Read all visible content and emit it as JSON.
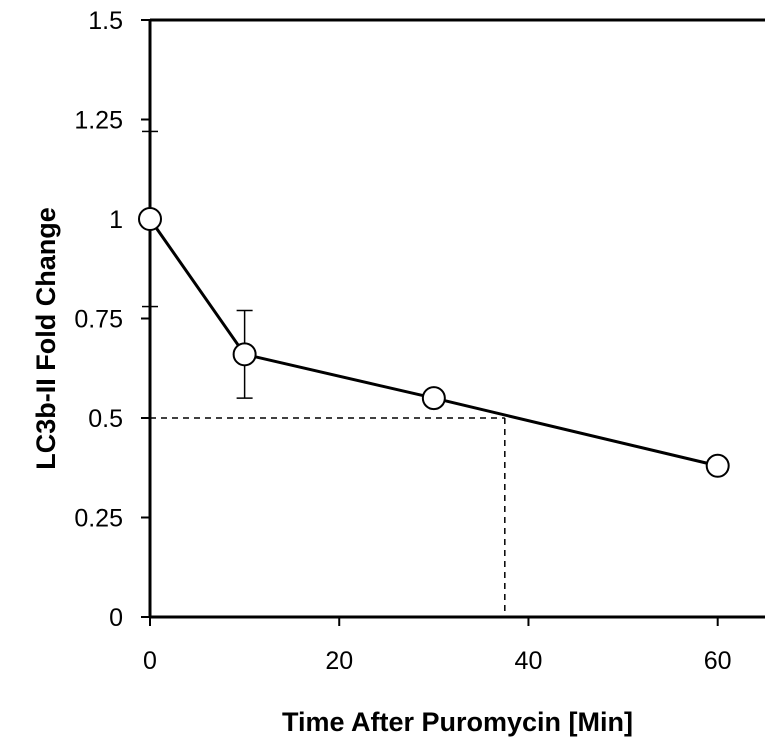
{
  "chart_data": {
    "type": "line",
    "title": "",
    "xlabel": "Time After Puromycin [Min]",
    "ylabel": "LC3b-II Fold Change",
    "xlim": [
      0,
      65
    ],
    "ylim": [
      0,
      1.5
    ],
    "x_ticks": [
      0,
      20,
      40,
      60
    ],
    "x_tick_labels": [
      "0",
      "20",
      "40",
      "60"
    ],
    "y_ticks": [
      0,
      0.25,
      0.5,
      0.75,
      1,
      1.25,
      1.5
    ],
    "y_tick_labels": [
      "0",
      "0.25",
      "0.5",
      "0.75",
      "1",
      "1.25",
      "1.5"
    ],
    "grid": false,
    "series": [
      {
        "x": [
          0,
          10,
          30,
          60
        ],
        "y": [
          1.0,
          0.66,
          0.55,
          0.38
        ],
        "error_upper": [
          1.22,
          0.77,
          null,
          null
        ],
        "error_lower": [
          0.78,
          0.55,
          null,
          null
        ],
        "marker": "open-circle",
        "color": "#000000"
      }
    ],
    "reference_lines": {
      "y": 0.5,
      "x": 37.5,
      "style": "dashed"
    }
  }
}
